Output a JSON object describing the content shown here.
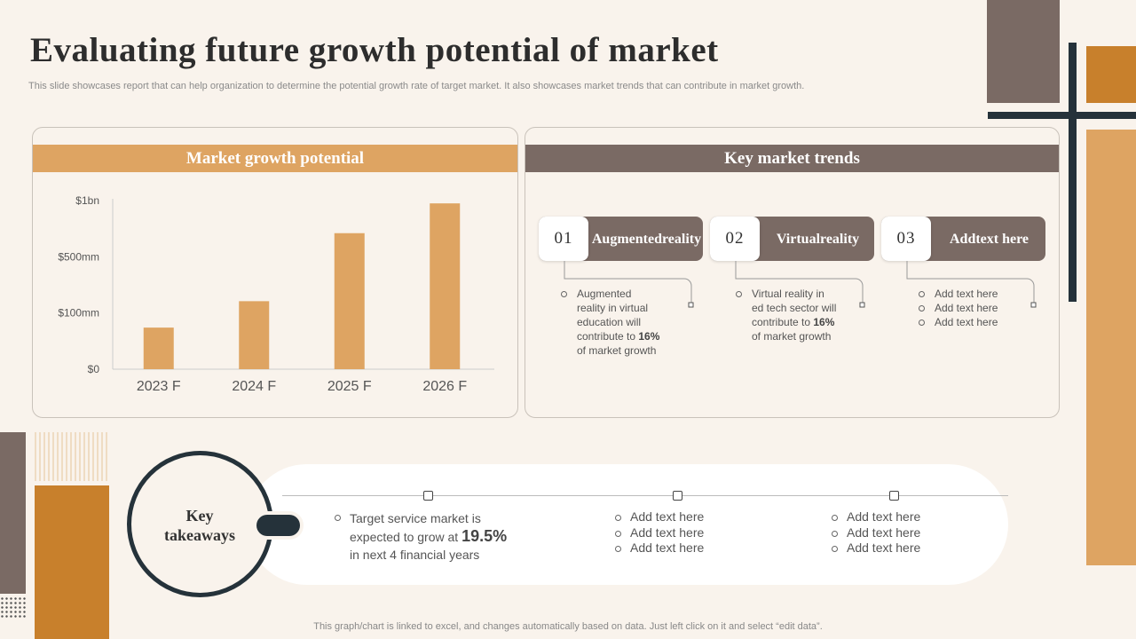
{
  "title": "Evaluating future growth potential of market",
  "subtitle": "This slide showcases report that can help organization to determine the potential growth rate of target market. It also showcases market trends that can contribute in market growth.",
  "left_panel": {
    "header": "Market growth potential"
  },
  "right_panel": {
    "header": "Key market trends"
  },
  "chart_data": {
    "type": "bar",
    "title": "",
    "categories": [
      "2023 F",
      "2024 F",
      "2025 F",
      "2026 F"
    ],
    "ytick_labels": [
      "$0",
      "$100mm",
      "$500mm",
      "$1bn"
    ],
    "values_tick_scale": [
      0.74,
      1.21,
      2.42,
      2.95
    ],
    "ylim": [
      0,
      3
    ],
    "xlabel": "",
    "ylabel": "",
    "grid": false,
    "bar_color": "#dea462"
  },
  "trends": [
    {
      "num": "01",
      "label_lines": [
        "Augmented",
        "reality"
      ],
      "bullets": [
        {
          "lines": [
            "Augmented",
            "reality in virtual",
            "education will",
            "contribute to "
          ],
          "highlight": "16%",
          "tail": "of market growth"
        }
      ]
    },
    {
      "num": "02",
      "label_lines": [
        "Virtual",
        "reality"
      ],
      "bullets": [
        {
          "lines": [
            "Virtual reality in",
            "ed tech sector will",
            "contribute to "
          ],
          "highlight": "16%",
          "tail": "of market growth"
        }
      ]
    },
    {
      "num": "03",
      "label_lines": [
        "Add",
        "text here"
      ],
      "bullets": [
        "Add text here",
        "Add text here",
        "Add text here"
      ]
    }
  ],
  "takeaways": {
    "label_lines": [
      "Key",
      "takeaways"
    ],
    "col1": {
      "pre": "Target service market is",
      "mid": "expected to grow at ",
      "highlight": "19.5%",
      "post": "in next 4 financial years"
    },
    "col2": [
      "Add text here",
      "Add text here",
      "Add text here"
    ],
    "col3": [
      "Add text here",
      "Add text here",
      "Add text here"
    ]
  },
  "footer": "This graph/chart is linked to excel,  and changes automatically based on data. Just left click on it and select “edit data”.",
  "colors": {
    "accent_orange": "#dea462",
    "dark_orange": "#c8802c",
    "taupe": "#7a6a64",
    "navy": "#25323a",
    "background": "#f9f3ec"
  }
}
